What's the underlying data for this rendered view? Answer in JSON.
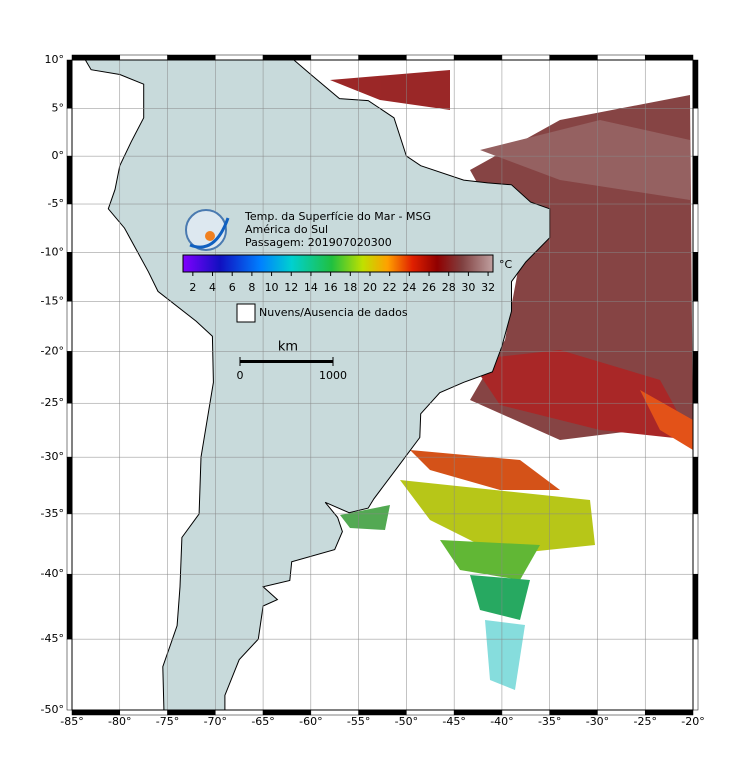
{
  "map": {
    "title": [
      "Temp. da Superfície do Mar - MSG",
      "América do Sul",
      "Passagem: 201907020300"
    ],
    "xlim": [
      -85,
      -20
    ],
    "ylim": [
      -50,
      10
    ],
    "xticks": [
      {
        "value": -85,
        "label": "-85°"
      },
      {
        "value": -80,
        "label": "-80°"
      },
      {
        "value": -75,
        "label": "-75°"
      },
      {
        "value": -70,
        "label": "-70°"
      },
      {
        "value": -65,
        "label": "-65°"
      },
      {
        "value": -60,
        "label": "-60°"
      },
      {
        "value": -55,
        "label": "-55°"
      },
      {
        "value": -50,
        "label": "-50°"
      },
      {
        "value": -45,
        "label": "-45°"
      },
      {
        "value": -40,
        "label": "-40°"
      },
      {
        "value": -35,
        "label": "-35°"
      },
      {
        "value": -30,
        "label": "-30°"
      },
      {
        "value": -25,
        "label": "-25°"
      },
      {
        "value": -20,
        "label": "-20°"
      }
    ],
    "yticks": [
      {
        "value": 10,
        "label": "10°"
      },
      {
        "value": 5,
        "label": "5°"
      },
      {
        "value": 0,
        "label": "0°"
      },
      {
        "value": -5,
        "label": "-5°"
      },
      {
        "value": -10,
        "label": "-10°"
      },
      {
        "value": -15,
        "label": "-15°"
      },
      {
        "value": -20,
        "label": "-20°"
      },
      {
        "value": -25,
        "label": "-25°"
      },
      {
        "value": -30,
        "label": "-30°"
      },
      {
        "value": -35,
        "label": "-35°"
      },
      {
        "value": -40,
        "label": "-40°"
      },
      {
        "value": -45,
        "label": "-45°"
      },
      {
        "value": -50,
        "label": "-50°"
      }
    ],
    "grid": true,
    "colorbar": {
      "unit": "°C",
      "lim": [
        1,
        32.5
      ],
      "ticks": [
        2,
        4,
        6,
        8,
        10,
        12,
        14,
        16,
        18,
        20,
        22,
        24,
        26,
        28,
        30,
        32
      ]
    },
    "legend": "Nuvens/Ausencia de dados",
    "scale": {
      "unit": "km",
      "ticks": [
        0,
        1000
      ]
    }
  }
}
